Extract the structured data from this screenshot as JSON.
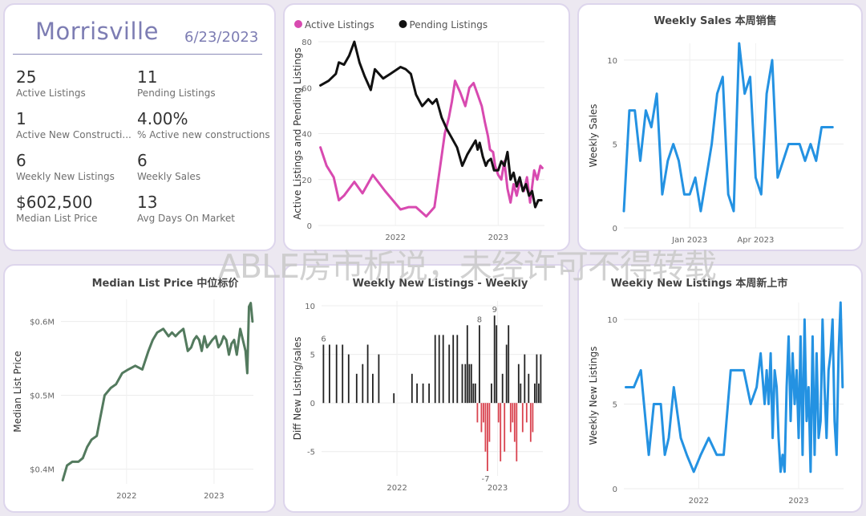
{
  "kpi": {
    "title": "Morrisville",
    "date": "6/23/2023",
    "items": [
      {
        "value": "25",
        "label": "Active Listings"
      },
      {
        "value": "11",
        "label": "Pending Listings"
      },
      {
        "value": "1",
        "label": "Active New Constructi..."
      },
      {
        "value": "4.00%",
        "label": "% Active new constructions"
      },
      {
        "value": "6",
        "label": "Weekly New Listings"
      },
      {
        "value": "6",
        "label": "Weekly Sales"
      },
      {
        "value": "$602,500",
        "label": "Median List Price"
      },
      {
        "value": "13",
        "label": "Avg Days On Market"
      }
    ]
  },
  "watermark": "ABLE房市析说，未经许可不得转载",
  "colors": {
    "active": "#d84ab0",
    "pending": "#111111",
    "sales_line": "#2492e2",
    "price_line": "#537a5e",
    "diff_pos": "#222222",
    "diff_neg": "#d9434f",
    "kpi_title": "#7d7db3"
  },
  "chart_data": [
    {
      "type": "line",
      "title": "",
      "ylabel": "Active Listings and Pending Listings",
      "xlabel": "",
      "legend_position": "top-left",
      "ylim": [
        0,
        80
      ],
      "yticks": [
        0,
        20,
        40,
        60,
        80
      ],
      "xlim": [
        2021.25,
        2023.45
      ],
      "xticks": [
        {
          "value": 2022.0,
          "label": "2022"
        },
        {
          "value": 2023.0,
          "label": "2023"
        }
      ],
      "series": [
        {
          "name": "Active Listings",
          "x": [
            2021.27,
            2021.33,
            2021.4,
            2021.45,
            2021.5,
            2021.6,
            2021.68,
            2021.78,
            2021.9,
            2022.05,
            2022.13,
            2022.2,
            2022.3,
            2022.38,
            2022.48,
            2022.52,
            2022.55,
            2022.58,
            2022.63,
            2022.68,
            2022.72,
            2022.76,
            2022.8,
            2022.84,
            2022.87,
            2022.9,
            2022.92,
            2022.95,
            2022.97,
            2023.0,
            2023.03,
            2023.06,
            2023.09,
            2023.12,
            2023.15,
            2023.18,
            2023.21,
            2023.25,
            2023.28,
            2023.31,
            2023.35,
            2023.38,
            2023.41,
            2023.43
          ],
          "y": [
            34,
            26,
            21,
            11,
            13,
            19,
            14,
            22,
            15,
            7,
            8,
            8,
            4,
            8,
            40,
            47,
            54,
            63,
            58,
            52,
            60,
            62,
            57,
            52,
            45,
            39,
            33,
            32,
            26,
            22,
            20,
            28,
            16,
            10,
            18,
            13,
            19,
            15,
            21,
            10,
            24,
            20,
            26,
            25
          ]
        },
        {
          "name": "Pending Listings",
          "x": [
            2021.27,
            2021.35,
            2021.42,
            2021.45,
            2021.5,
            2021.55,
            2021.6,
            2021.65,
            2021.7,
            2021.76,
            2021.8,
            2021.88,
            2021.95,
            2022.05,
            2022.1,
            2022.15,
            2022.2,
            2022.26,
            2022.32,
            2022.36,
            2022.4,
            2022.45,
            2022.5,
            2022.55,
            2022.6,
            2022.65,
            2022.7,
            2022.74,
            2022.78,
            2022.8,
            2022.82,
            2022.85,
            2022.88,
            2022.9,
            2022.93,
            2022.96,
            2023.0,
            2023.03,
            2023.06,
            2023.09,
            2023.12,
            2023.15,
            2023.18,
            2023.21,
            2023.24,
            2023.27,
            2023.3,
            2023.33,
            2023.36,
            2023.39,
            2023.42
          ],
          "y": [
            61,
            63,
            66,
            71,
            70,
            74,
            80,
            71,
            65,
            59,
            68,
            64,
            66,
            69,
            68,
            66,
            57,
            52,
            55,
            53,
            55,
            47,
            42,
            38,
            34,
            26,
            31,
            34,
            37,
            33,
            36,
            30,
            26,
            28,
            29,
            24,
            24,
            28,
            26,
            32,
            20,
            23,
            17,
            21,
            15,
            18,
            13,
            15,
            8,
            11,
            11
          ]
        }
      ]
    },
    {
      "type": "line",
      "title": "Weekly Sales 本周销售",
      "ylabel": "Weekly Sales",
      "xlabel": "",
      "ylim": [
        0,
        11
      ],
      "yticks": [
        0,
        5,
        10
      ],
      "xlim": [
        0,
        40
      ],
      "xticks": [
        {
          "value": 12,
          "label": "Jan 2023"
        },
        {
          "value": 24,
          "label": "Apr 2023"
        }
      ],
      "series": [
        {
          "name": "",
          "x": [
            0,
            1,
            2,
            3,
            4,
            5,
            6,
            7,
            8,
            9,
            10,
            11,
            12,
            13,
            14,
            15,
            16,
            17,
            18,
            19,
            20,
            21,
            22,
            23,
            24,
            25,
            26,
            27,
            28,
            29,
            30,
            31,
            32,
            33,
            34,
            35,
            36,
            37,
            38
          ],
          "y": [
            1,
            7,
            7,
            4,
            7,
            6,
            8,
            2,
            4,
            5,
            4,
            2,
            2,
            3,
            1,
            3,
            5,
            8,
            9,
            2,
            1,
            11,
            8,
            9,
            3,
            2,
            8,
            10,
            3,
            4,
            5,
            5,
            5,
            4,
            5,
            4,
            6,
            6,
            6
          ]
        }
      ]
    },
    {
      "type": "line",
      "title": "Median List Price 中位标价",
      "ylabel": "Median List Price",
      "xlabel": "",
      "ylim": [
        0.38,
        0.63
      ],
      "yticks": [
        {
          "value": 0.4,
          "label": "$0.4M"
        },
        {
          "value": 0.5,
          "label": "$0.5M"
        },
        {
          "value": 0.6,
          "label": "$0.6M"
        }
      ],
      "xlim": [
        2021.25,
        2023.45
      ],
      "xticks": [
        {
          "value": 2022.0,
          "label": "2022"
        },
        {
          "value": 2023.0,
          "label": "2023"
        }
      ],
      "series": [
        {
          "name": "",
          "x": [
            2021.27,
            2021.32,
            2021.38,
            2021.45,
            2021.5,
            2021.55,
            2021.6,
            2021.66,
            2021.7,
            2021.75,
            2021.82,
            2021.88,
            2021.95,
            2022.02,
            2022.1,
            2022.18,
            2022.25,
            2022.3,
            2022.35,
            2022.42,
            2022.48,
            2022.52,
            2022.56,
            2022.6,
            2022.65,
            2022.7,
            2022.74,
            2022.77,
            2022.8,
            2022.83,
            2022.86,
            2022.89,
            2022.92,
            2022.95,
            2022.98,
            2023.02,
            2023.05,
            2023.08,
            2023.11,
            2023.14,
            2023.17,
            2023.2,
            2023.23,
            2023.26,
            2023.3,
            2023.33,
            2023.36,
            2023.38,
            2023.4,
            2023.42,
            2023.44
          ],
          "y": [
            0.385,
            0.405,
            0.41,
            0.41,
            0.415,
            0.43,
            0.44,
            0.445,
            0.47,
            0.5,
            0.51,
            0.515,
            0.53,
            0.535,
            0.54,
            0.535,
            0.56,
            0.575,
            0.585,
            0.59,
            0.58,
            0.585,
            0.58,
            0.585,
            0.59,
            0.56,
            0.565,
            0.575,
            0.58,
            0.575,
            0.56,
            0.58,
            0.565,
            0.57,
            0.575,
            0.58,
            0.565,
            0.57,
            0.58,
            0.575,
            0.555,
            0.57,
            0.575,
            0.555,
            0.59,
            0.575,
            0.56,
            0.53,
            0.62,
            0.625,
            0.6
          ]
        }
      ]
    },
    {
      "type": "bar",
      "title": "Weekly New Listings - Weekly",
      "ylabel": "Diff New Listing/sales",
      "xlabel": "",
      "ylim": [
        -7.5,
        10.5
      ],
      "yticks": [
        -5,
        0,
        5,
        10
      ],
      "xlim": [
        2021.25,
        2023.45
      ],
      "xticks": [
        {
          "value": 2022.0,
          "label": "2022"
        },
        {
          "value": 2023.0,
          "label": "2023"
        }
      ],
      "data_labels": [
        {
          "x": 2021.27,
          "value": 6
        },
        {
          "x": 2022.82,
          "value": 8
        },
        {
          "x": 2022.97,
          "value": 9
        },
        {
          "x": 2022.88,
          "value": -7
        }
      ],
      "x": [
        2021.27,
        2021.33,
        2021.4,
        2021.46,
        2021.52,
        2021.6,
        2021.66,
        2021.71,
        2021.76,
        2021.82,
        2021.97,
        2022.15,
        2022.2,
        2022.26,
        2022.32,
        2022.38,
        2022.42,
        2022.46,
        2022.52,
        2022.56,
        2022.6,
        2022.65,
        2022.68,
        2022.7,
        2022.72,
        2022.74,
        2022.76,
        2022.78,
        2022.8,
        2022.82,
        2022.84,
        2022.86,
        2022.88,
        2022.9,
        2022.92,
        2022.94,
        2022.97,
        2022.99,
        2023.01,
        2023.03,
        2023.05,
        2023.07,
        2023.09,
        2023.11,
        2023.13,
        2023.15,
        2023.17,
        2023.19,
        2023.21,
        2023.23,
        2023.25,
        2023.27,
        2023.29,
        2023.31,
        2023.33,
        2023.35,
        2023.37,
        2023.39,
        2023.41,
        2023.43
      ],
      "values": [
        6,
        6,
        6,
        6,
        5,
        3,
        4,
        6,
        3,
        5,
        1,
        3,
        2,
        2,
        2,
        7,
        7,
        7,
        6,
        7,
        7,
        4,
        4,
        8,
        4,
        4,
        2,
        2,
        -2,
        8,
        -3,
        -2,
        -5,
        -7,
        -4,
        2,
        9,
        8,
        -2,
        -6,
        3,
        -5,
        6,
        8,
        -3,
        -2,
        -4,
        -6,
        4,
        2,
        -3,
        5,
        -2,
        3,
        -4,
        -3,
        2,
        5,
        2,
        5
      ]
    },
    {
      "type": "line",
      "title": "Weekly New Listings  本周新上市",
      "ylabel": "Weekly New Listings",
      "xlabel": "",
      "ylim": [
        0,
        11
      ],
      "yticks": [
        0,
        5,
        10
      ],
      "xlim": [
        2021.25,
        2023.45
      ],
      "xticks": [
        {
          "value": 2022.0,
          "label": "2022"
        },
        {
          "value": 2023.0,
          "label": "2023"
        }
      ],
      "series": [
        {
          "name": "",
          "x": [
            2021.27,
            2021.35,
            2021.42,
            2021.5,
            2021.55,
            2021.62,
            2021.66,
            2021.7,
            2021.75,
            2021.82,
            2021.88,
            2021.95,
            2022.02,
            2022.1,
            2022.18,
            2022.25,
            2022.32,
            2022.38,
            2022.45,
            2022.52,
            2022.58,
            2022.62,
            2022.66,
            2022.68,
            2022.7,
            2022.72,
            2022.74,
            2022.76,
            2022.78,
            2022.8,
            2022.82,
            2022.84,
            2022.86,
            2022.88,
            2022.9,
            2022.92,
            2022.94,
            2022.96,
            2022.98,
            2023.0,
            2023.02,
            2023.04,
            2023.06,
            2023.08,
            2023.1,
            2023.12,
            2023.14,
            2023.16,
            2023.18,
            2023.2,
            2023.22,
            2023.24,
            2023.26,
            2023.28,
            2023.3,
            2023.32,
            2023.34,
            2023.36,
            2023.38,
            2023.4,
            2023.42,
            2023.44
          ],
          "y": [
            6,
            6,
            7,
            2,
            5,
            5,
            2,
            3,
            6,
            3,
            2,
            1,
            2,
            3,
            2,
            2,
            7,
            7,
            7,
            5,
            6,
            8,
            5,
            7,
            5,
            8,
            3,
            7,
            6,
            3,
            1,
            2,
            1,
            6,
            9,
            4,
            8,
            5,
            7,
            3,
            9,
            2,
            10,
            4,
            6,
            1,
            9,
            2,
            8,
            3,
            4,
            10,
            6,
            3,
            7,
            8,
            10,
            4,
            2,
            8,
            11,
            6
          ]
        }
      ]
    }
  ]
}
